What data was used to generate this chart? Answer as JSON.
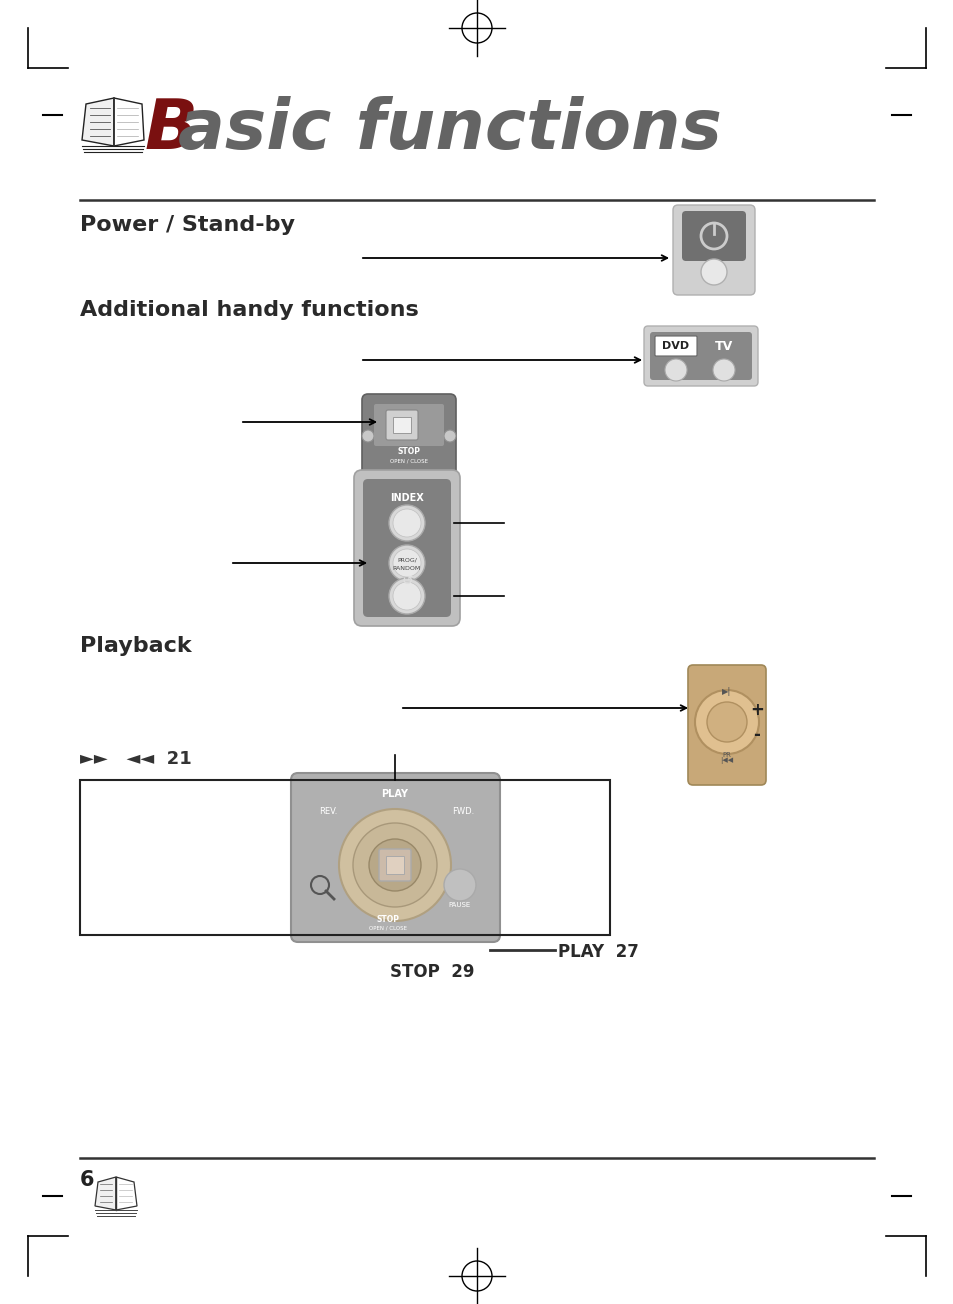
{
  "bg_color": "#ffffff",
  "title_color": "#6b6b6b",
  "title_B_color": "#8B0000",
  "section1_title": "Power / Stand-by",
  "section2_title": "Additional handy functions",
  "section3_title": "Playback",
  "page_number": "6",
  "play_ref": "PLAY  27",
  "stop_ref": "STOP  29",
  "fast_fwd_text": "►►   ◄◄  21",
  "section_title_color": "#2a2a2a",
  "ref_color": "#2a2a2a",
  "gray_dark": "#777777",
  "gray_medium": "#aaaaaa",
  "gray_light": "#d0d0d0",
  "gray_bg": "#c8c8c8",
  "white": "#ffffff",
  "black": "#000000"
}
